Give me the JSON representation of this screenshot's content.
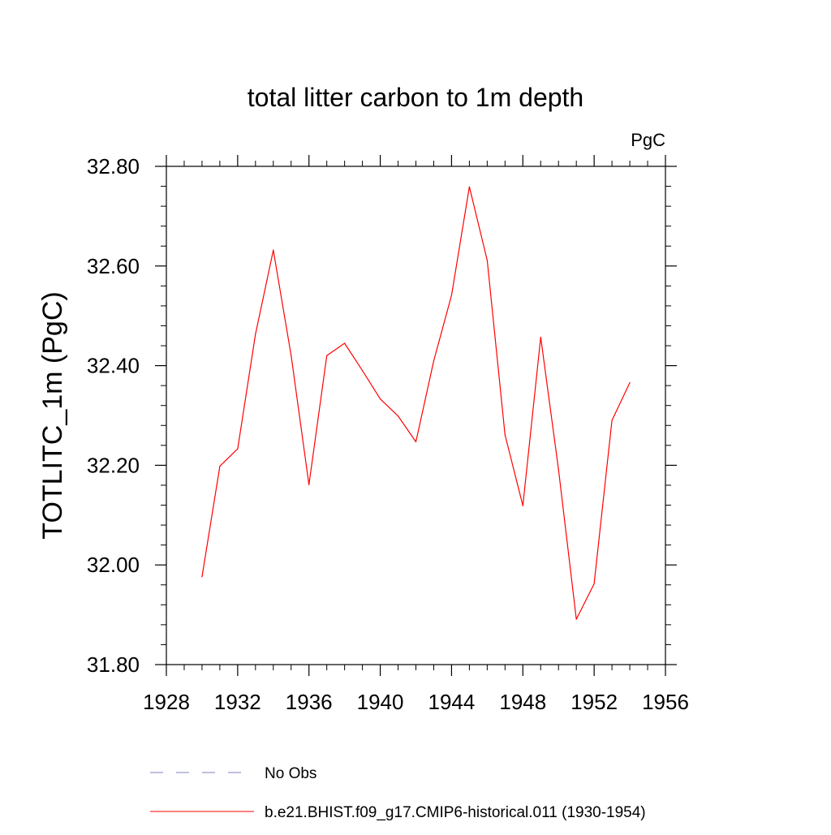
{
  "chart_data": {
    "type": "line",
    "title": "total litter carbon to 1m depth",
    "units_label": "PgC",
    "xlabel": "",
    "ylabel": "TOTLITC_1m  (PgC)",
    "xlim": [
      1928,
      1956
    ],
    "ylim": [
      31.8,
      32.8
    ],
    "x_ticks": [
      1928,
      1932,
      1936,
      1940,
      1944,
      1948,
      1952,
      1956
    ],
    "x_tick_labels": [
      "1928",
      "1932",
      "1936",
      "1940",
      "1944",
      "1948",
      "1952",
      "1956"
    ],
    "x_minor_step": 1,
    "y_ticks": [
      31.8,
      32.0,
      32.2,
      32.4,
      32.6,
      32.8
    ],
    "y_tick_labels": [
      "31.80",
      "32.00",
      "32.20",
      "32.40",
      "32.60",
      "32.80"
    ],
    "y_minor_step": 0.04,
    "grid": false,
    "legend_position": "bottom",
    "series": [
      {
        "name": "b.e21.BHIST.f09_g17.CMIP6-historical.011 (1930-1954)",
        "color": "#ff0000",
        "dash": "solid",
        "x": [
          1930,
          1931,
          1932,
          1933,
          1934,
          1935,
          1936,
          1937,
          1938,
          1939,
          1940,
          1941,
          1942,
          1943,
          1944,
          1945,
          1946,
          1947,
          1948,
          1949,
          1950,
          1951,
          1952,
          1953,
          1954
        ],
        "y": [
          31.976,
          32.198,
          32.233,
          32.463,
          32.632,
          32.42,
          32.161,
          32.42,
          32.445,
          32.39,
          32.333,
          32.299,
          32.247,
          32.41,
          32.541,
          32.759,
          32.611,
          32.261,
          32.119,
          32.457,
          32.192,
          31.891,
          31.962,
          32.29,
          32.366
        ]
      }
    ],
    "legend": [
      {
        "label": "No Obs",
        "color": "#8080c0",
        "dash": "dashed"
      },
      {
        "label": "b.e21.BHIST.f09_g17.CMIP6-historical.011 (1930-1954)",
        "color": "#ff0000",
        "dash": "solid"
      }
    ]
  }
}
